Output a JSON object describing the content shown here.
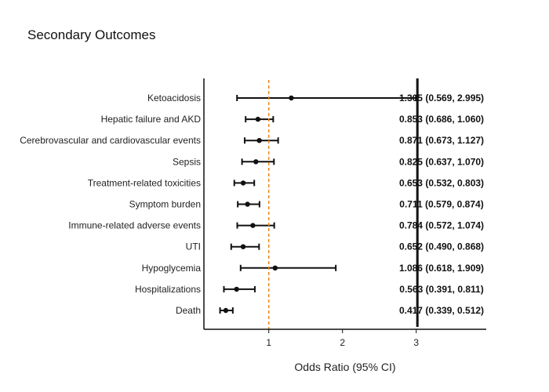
{
  "chart_data": {
    "type": "forest",
    "title": "Secondary Outcomes",
    "xlabel": "Odds Ratio (95% CI)",
    "xlim": [
      0.12,
      3.95
    ],
    "xticks": [
      1,
      2,
      3
    ],
    "reference_line": 1,
    "reference_color": "#e8891a",
    "marker_color": "#111111",
    "rows": [
      {
        "label": "Ketoacidosis",
        "or": 1.305,
        "lo": 0.569,
        "hi": 2.995,
        "text": "1.305 (0.569, 2.995)"
      },
      {
        "label": "Hepatic failure and AKD",
        "or": 0.853,
        "lo": 0.686,
        "hi": 1.06,
        "text": "0.853 (0.686, 1.060)"
      },
      {
        "label": "Cerebrovascular and cardiovascular events",
        "or": 0.871,
        "lo": 0.673,
        "hi": 1.127,
        "text": "0.871 (0.673, 1.127)"
      },
      {
        "label": "Sepsis",
        "or": 0.825,
        "lo": 0.637,
        "hi": 1.07,
        "text": "0.825 (0.637, 1.070)"
      },
      {
        "label": "Treatment-related toxicities",
        "or": 0.653,
        "lo": 0.532,
        "hi": 0.803,
        "text": "0.653 (0.532, 0.803)"
      },
      {
        "label": "Symptom burden",
        "or": 0.711,
        "lo": 0.579,
        "hi": 0.874,
        "text": "0.711 (0.579, 0.874)"
      },
      {
        "label": "Immune-related adverse events",
        "or": 0.784,
        "lo": 0.572,
        "hi": 1.074,
        "text": "0.784 (0.572, 1.074)"
      },
      {
        "label": "UTI",
        "or": 0.652,
        "lo": 0.49,
        "hi": 0.868,
        "text": "0.652 (0.490, 0.868)"
      },
      {
        "label": "Hypoglycemia",
        "or": 1.086,
        "lo": 0.618,
        "hi": 1.909,
        "text": "1.086 (0.618, 1.909)"
      },
      {
        "label": "Hospitalizations",
        "or": 0.563,
        "lo": 0.391,
        "hi": 0.811,
        "text": "0.563 (0.391, 0.811)"
      },
      {
        "label": "Death",
        "or": 0.417,
        "lo": 0.339,
        "hi": 0.512,
        "text": "0.417 (0.339, 0.512)"
      }
    ]
  }
}
